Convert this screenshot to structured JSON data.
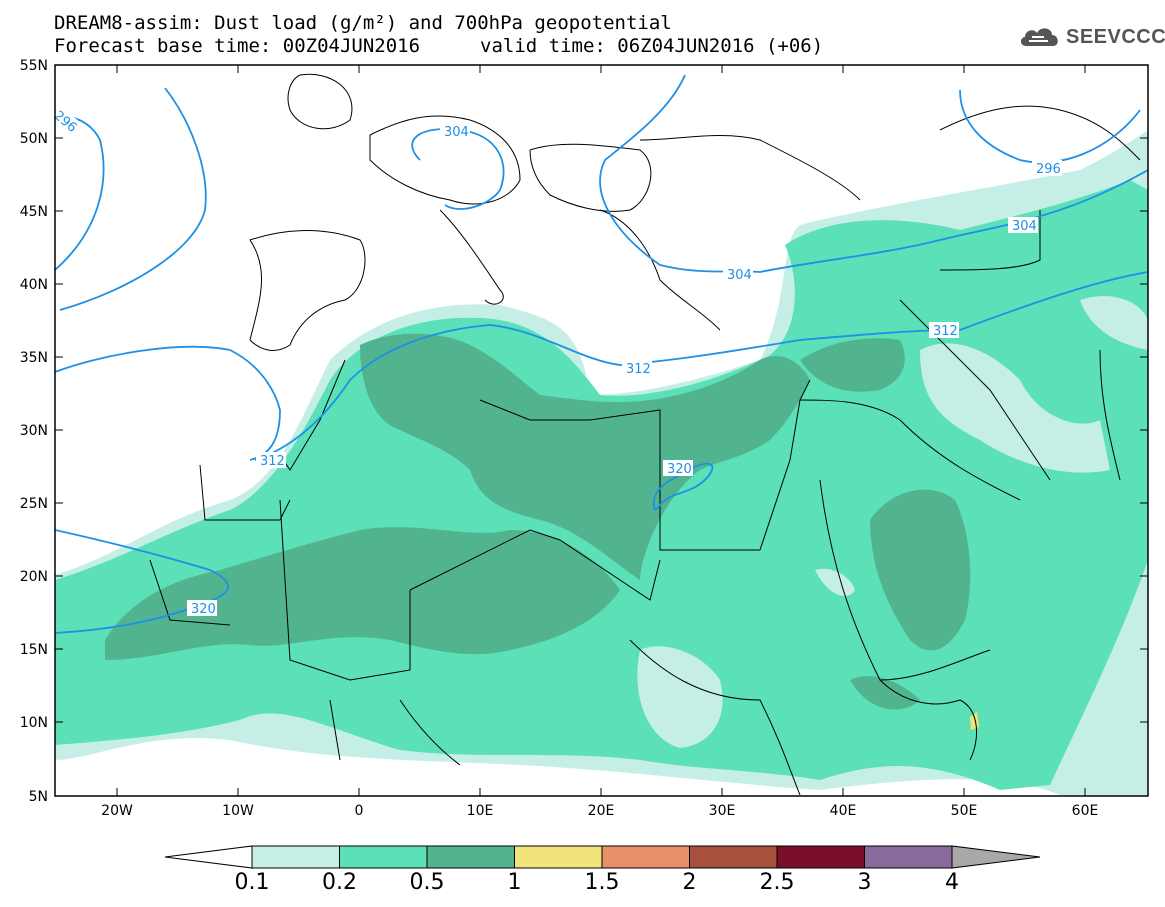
{
  "header": {
    "title_line1": "DREAM8-assim: Dust load (g/m²) and 700hPa geopotential",
    "base_time_label": "Forecast base time: 00Z04JUN2016",
    "valid_time_label": "valid time: 06Z04JUN2016 (+06)"
  },
  "logo": {
    "text": "SEEVCCC",
    "icon": "cloud-icon"
  },
  "map": {
    "lat_labels": [
      "55N",
      "50N",
      "45N",
      "40N",
      "35N",
      "30N",
      "25N",
      "20N",
      "15N",
      "10N",
      "5N"
    ],
    "lon_labels": [
      "20W",
      "10W",
      "0",
      "10E",
      "20E",
      "30E",
      "40E",
      "50E",
      "60E"
    ],
    "contour_labels": [
      "296",
      "304",
      "312",
      "320"
    ],
    "colors": {
      "background": "#ffffff",
      "contour": "#1e90e6",
      "border": "#000000"
    }
  },
  "colorbar": {
    "labels": [
      "0.1",
      "0.2",
      "0.5",
      "1",
      "1.5",
      "2",
      "2.5",
      "3",
      "4"
    ],
    "colors": [
      "#c5efe6",
      "#5ce0b8",
      "#52b48e",
      "#f0e47a",
      "#e8906a",
      "#a8503e",
      "#7a0f2a",
      "#8a6a9c",
      "#a8a8a8"
    ],
    "under_color": "#ffffff"
  }
}
